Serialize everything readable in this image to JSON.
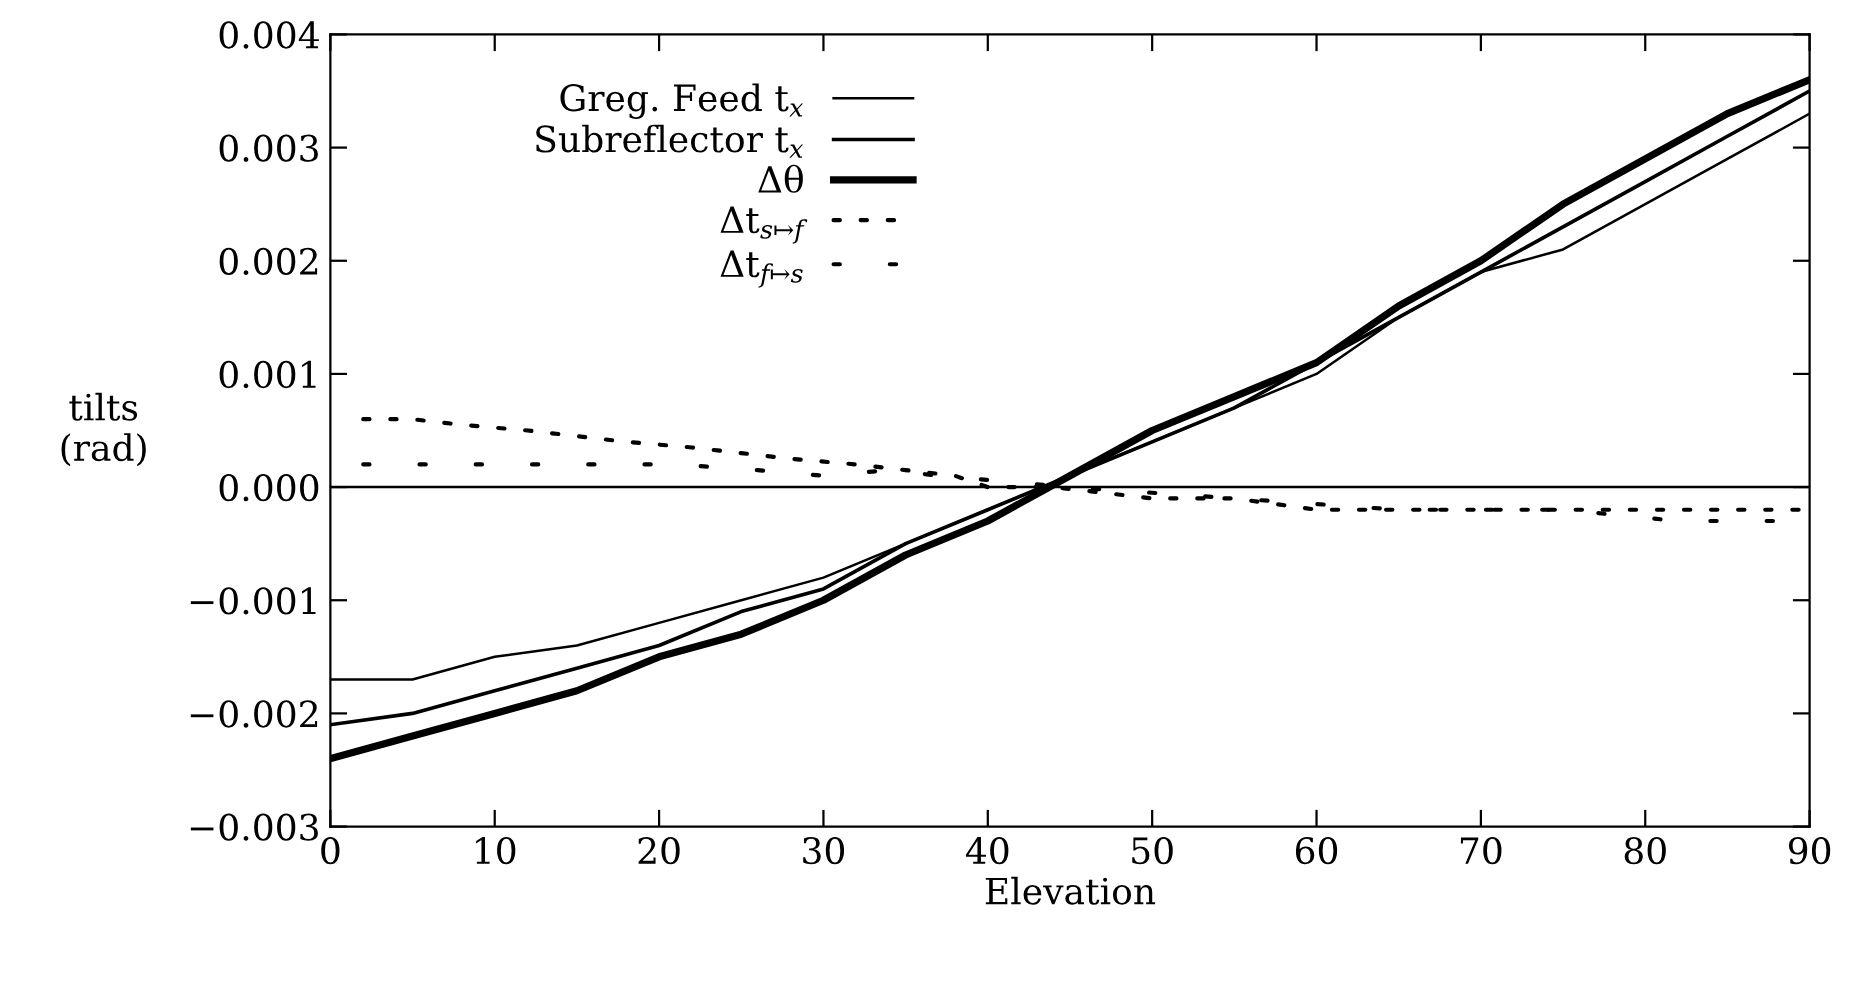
{
  "chart_data": {
    "type": "line",
    "xlabel": "Elevation",
    "ylabel": "tilts\n(rad)",
    "xlim": [
      0,
      90
    ],
    "xticks": [
      0,
      10,
      20,
      30,
      40,
      50,
      60,
      70,
      80,
      90
    ],
    "ylim": [
      -0.003,
      0.004
    ],
    "yticks": [
      {
        "value": -0.003,
        "label": "−0.003"
      },
      {
        "value": -0.002,
        "label": "−0.002"
      },
      {
        "value": -0.001,
        "label": "−0.001"
      },
      {
        "value": 0,
        "label": "0.000"
      },
      {
        "value": 0.001,
        "label": "0.001"
      },
      {
        "value": 0.002,
        "label": "0.002"
      },
      {
        "value": 0.003,
        "label": "0.003"
      },
      {
        "value": 0.004,
        "label": "0.004"
      }
    ],
    "grid": false,
    "legend": "top left",
    "marker": "none",
    "ref_lines": [
      {
        "axis": "y",
        "value": 0,
        "color": "#000000"
      }
    ],
    "series": [
      {
        "name": "Greg. Feed t$_{x}$",
        "color": "#000000",
        "line_style": "solid",
        "x": [
          0,
          5,
          10,
          15,
          20,
          25,
          30,
          35,
          40,
          45,
          50,
          55,
          60,
          65,
          70,
          75,
          80,
          85,
          90
        ],
        "values": [
          -0.0017,
          -0.0017,
          -0.0015,
          -0.0014,
          -0.0012,
          -0.001,
          -0.0008,
          -0.0005,
          -0.0002,
          0.0001,
          0.0004,
          0.0007,
          0.001,
          0.0015,
          0.0019,
          0.0021,
          0.0025,
          0.0029,
          0.0033
        ]
      },
      {
        "name": "Subreflector t$_{x}$",
        "color": "#000000",
        "line_style": "solid",
        "x": [
          0,
          5,
          10,
          15,
          20,
          25,
          30,
          35,
          40,
          45,
          50,
          55,
          60,
          65,
          70,
          75,
          80,
          85,
          90
        ],
        "values": [
          -0.0021,
          -0.002,
          -0.0018,
          -0.0016,
          -0.0014,
          -0.0011,
          -0.0009,
          -0.0005,
          -0.0002,
          0.0001,
          0.0004,
          0.0007,
          0.0011,
          0.0015,
          0.0019,
          0.0023,
          0.0027,
          0.0031,
          0.0035
        ]
      },
      {
        "name": "Δθ",
        "color": "#000000",
        "line_style": "solid",
        "x": [
          0,
          5,
          10,
          15,
          20,
          25,
          30,
          35,
          40,
          45,
          50,
          55,
          60,
          65,
          70,
          75,
          80,
          85,
          90
        ],
        "values": [
          -0.0024,
          -0.0022,
          -0.002,
          -0.0018,
          -0.0015,
          -0.0013,
          -0.001,
          -0.0006,
          -0.0003,
          0.0001,
          0.0005,
          0.0008,
          0.0011,
          0.0016,
          0.002,
          0.0025,
          0.0029,
          0.0033,
          0.0036
        ]
      },
      {
        "name": "Δt$_{s↦f}$",
        "color": "#000000",
        "line_style": "dotted",
        "x": [
          2,
          5,
          8,
          12,
          15,
          18,
          22,
          25,
          28,
          32,
          35,
          38,
          40,
          44,
          50,
          55,
          60,
          65,
          70,
          75,
          80,
          85,
          90
        ],
        "values": [
          0.0006,
          0.0006,
          0.00055,
          0.0005,
          0.00045,
          0.0004,
          0.00035,
          0.0003,
          0.00025,
          0.0002,
          0.00015,
          0.0001,
          0,
          0,
          -0.0001,
          -0.0001,
          -0.0002,
          -0.0002,
          -0.0002,
          -0.0002,
          -0.0002,
          -0.0002,
          -0.0002
        ]
      },
      {
        "name": "Δt$_{f↦s}$",
        "color": "#000000",
        "line_style": "dotted",
        "x": [
          2,
          7,
          12,
          17,
          21,
          26,
          30,
          34,
          37,
          45,
          55,
          65,
          75,
          82,
          86,
          90
        ],
        "values": [
          0.0002,
          0.0002,
          0.0002,
          0.0002,
          0.0002,
          0.00015,
          0.0001,
          0.00015,
          0.0001,
          0,
          -0.0001,
          -0.0002,
          -0.0002,
          -0.0003,
          -0.0003,
          -0.0003
        ]
      }
    ]
  }
}
